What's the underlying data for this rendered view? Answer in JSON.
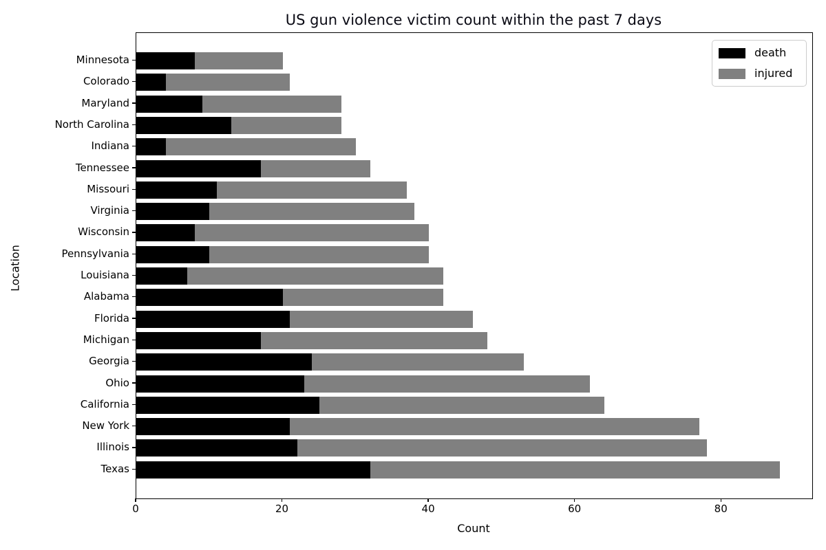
{
  "chart_data": {
    "type": "bar",
    "orientation": "horizontal",
    "stacked": true,
    "title": "US gun violence victim count within the past 7 days",
    "xlabel": "Count",
    "ylabel": "Location",
    "category_order": "top-to-bottom",
    "categories": [
      "Minnesota",
      "Colorado",
      "Maryland",
      "North Carolina",
      "Indiana",
      "Tennessee",
      "Missouri",
      "Virginia",
      "Wisconsin",
      "Pennsylvania",
      "Louisiana",
      "Alabama",
      "Florida",
      "Michigan",
      "Georgia",
      "Ohio",
      "California",
      "New York",
      "Illinois",
      "Texas"
    ],
    "series": [
      {
        "name": "death",
        "color": "#000000",
        "values": [
          8,
          4,
          9,
          13,
          4,
          17,
          11,
          10,
          8,
          10,
          7,
          20,
          21,
          17,
          24,
          23,
          25,
          21,
          22,
          32
        ]
      },
      {
        "name": "injured",
        "color": "#808080",
        "values": [
          12,
          17,
          19,
          15,
          26,
          15,
          26,
          28,
          32,
          30,
          35,
          22,
          25,
          31,
          29,
          39,
          39,
          56,
          56,
          56
        ]
      }
    ],
    "x_ticks": [
      0,
      20,
      40,
      60,
      80
    ],
    "xlim": [
      0,
      92.4
    ],
    "grid": false,
    "legend": {
      "position": "upper right",
      "entries": [
        "death",
        "injured"
      ]
    }
  }
}
